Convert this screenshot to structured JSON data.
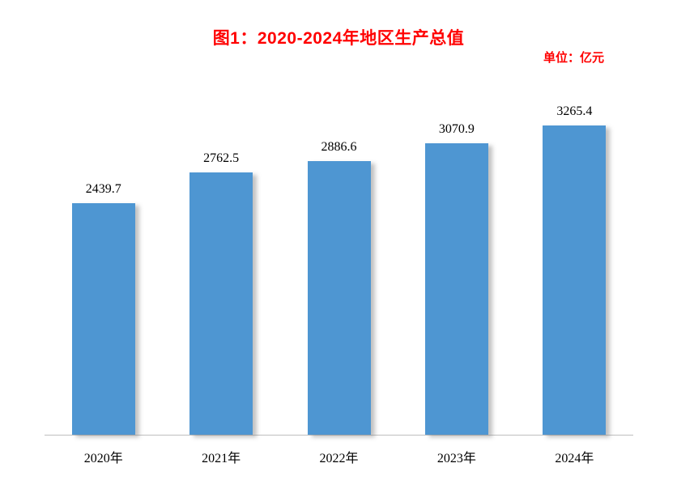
{
  "chart": {
    "title": "图1：2020-2024年地区生产总值",
    "unit_label": "单位：亿元",
    "title_color": "#ff0000",
    "bar_color": "#4e96d2",
    "axis_line_color": "#bfbfbf"
  },
  "chart_data": {
    "type": "bar",
    "title": "图1：2020-2024年地区生产总值",
    "subtitle": "单位：亿元",
    "categories": [
      "2020年",
      "2021年",
      "2022年",
      "2023年",
      "2024年"
    ],
    "values": [
      2439.7,
      2762.5,
      2886.6,
      3070.9,
      3265.4
    ],
    "xlabel": "",
    "ylabel": "",
    "ylim": [
      0,
      3500
    ],
    "grid": false,
    "legend": "none",
    "data_labels": true,
    "data_label_decimals": 1
  }
}
